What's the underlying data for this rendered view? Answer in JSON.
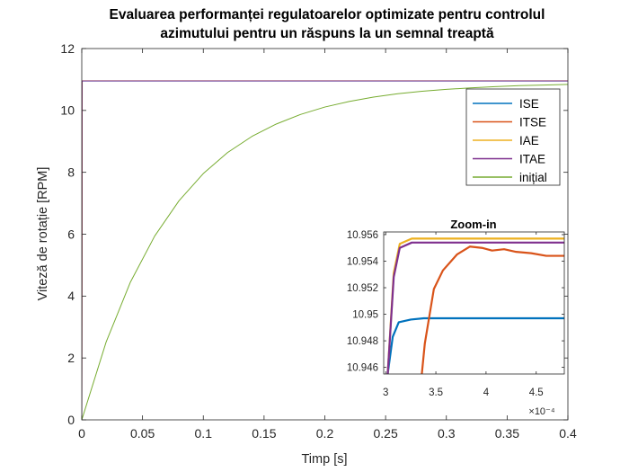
{
  "figure": {
    "title_line1": "Evaluarea performanței regulatoarelor optimizate pentru controlul",
    "title_line2": "azimutului pentru un răspuns la un semnal treaptă"
  },
  "chart_data": [
    {
      "type": "line",
      "title": "Evaluarea performanței regulatoarelor optimizate pentru controlul azimutului pentru un răspuns la un semnal treaptă",
      "xlabel": "Timp [s]",
      "ylabel": "Viteză de rotație [RPM]",
      "xlim": [
        0,
        0.4
      ],
      "ylim": [
        0,
        12
      ],
      "xticks": [
        0,
        0.05,
        0.1,
        0.15,
        0.2,
        0.25,
        0.3,
        0.35,
        0.4
      ],
      "xtick_labels": [
        "0",
        "0.05",
        "0.1",
        "0.15",
        "0.2",
        "0.25",
        "0.3",
        "0.35",
        "0.4"
      ],
      "yticks": [
        0,
        2,
        4,
        6,
        8,
        10,
        12
      ],
      "ytick_labels": [
        "0",
        "2",
        "4",
        "6",
        "8",
        "10",
        "12"
      ],
      "grid": false,
      "legend_position": "top-right",
      "series": [
        {
          "name": "ISE",
          "color": "#0072BD",
          "x": [
            0,
            0.0003,
            0.4
          ],
          "y": [
            0,
            10.95,
            10.95
          ]
        },
        {
          "name": "ITSE",
          "color": "#D95319",
          "x": [
            0,
            0.0004,
            0.4
          ],
          "y": [
            0,
            10.955,
            10.955
          ]
        },
        {
          "name": "IAE",
          "color": "#EDB120",
          "x": [
            0,
            0.0003,
            0.4
          ],
          "y": [
            0,
            10.956,
            10.956
          ]
        },
        {
          "name": "ITAE",
          "color": "#7E2F8E",
          "x": [
            0,
            0.0003,
            0.4
          ],
          "y": [
            0,
            10.955,
            10.955
          ]
        },
        {
          "name": "inițial",
          "color": "#77AC30",
          "x": [
            0,
            0.02,
            0.04,
            0.06,
            0.08,
            0.1,
            0.12,
            0.14,
            0.16,
            0.18,
            0.2,
            0.22,
            0.24,
            0.26,
            0.28,
            0.3,
            0.32,
            0.34,
            0.36,
            0.38,
            0.4
          ],
          "y": [
            0,
            2.51,
            4.45,
            5.94,
            7.08,
            7.96,
            8.64,
            9.16,
            9.56,
            9.87,
            10.11,
            10.29,
            10.43,
            10.54,
            10.62,
            10.68,
            10.73,
            10.77,
            10.8,
            10.82,
            10.84
          ]
        }
      ]
    },
    {
      "type": "line",
      "title": "Zoom-in",
      "xlim": [
        0.000298,
        0.000478
      ],
      "ylim": [
        10.9455,
        10.9562
      ],
      "xticks": [
        3,
        3.5,
        4,
        4.5
      ],
      "xtick_labels": [
        "3",
        "3.5",
        "4",
        "4.5"
      ],
      "x_exponent": "×10⁻⁴",
      "yticks": [
        10.946,
        10.948,
        10.95,
        10.952,
        10.954,
        10.956
      ],
      "ytick_labels": [
        "10.946",
        "10.948",
        "10.95",
        "10.952",
        "10.954",
        "10.956"
      ],
      "grid": false,
      "series": [
        {
          "name": "ISE",
          "color": "#0072BD",
          "x": [
            0.000302,
            0.000307,
            0.000313,
            0.000325,
            0.000338,
            0.00035,
            0.000478
          ],
          "y": [
            10.9455,
            10.9483,
            10.9494,
            10.9496,
            10.9497,
            10.9497,
            10.9497
          ]
        },
        {
          "name": "ITSE",
          "color": "#D95319",
          "x": [
            0.000336,
            0.000339,
            0.000348,
            0.000357,
            0.000371,
            0.000384,
            0.000396,
            0.000406,
            0.000418,
            0.00043,
            0.000445,
            0.00046,
            0.000478
          ],
          "y": [
            10.9455,
            10.9478,
            10.9519,
            10.9533,
            10.9545,
            10.9551,
            10.955,
            10.9548,
            10.9549,
            10.9547,
            10.9546,
            10.9544,
            10.9544
          ]
        },
        {
          "name": "IAE",
          "color": "#EDB120",
          "x": [
            0.000302,
            0.000308,
            0.000314,
            0.000326,
            0.00034,
            0.000478
          ],
          "y": [
            10.9455,
            10.9531,
            10.9553,
            10.9557,
            10.9557,
            10.9557
          ]
        },
        {
          "name": "ITAE",
          "color": "#7E2F8E",
          "x": [
            0.000302,
            0.000308,
            0.000314,
            0.000326,
            0.00034,
            0.000478
          ],
          "y": [
            10.9455,
            10.9528,
            10.955,
            10.9554,
            10.9554,
            10.9554
          ]
        }
      ]
    }
  ]
}
